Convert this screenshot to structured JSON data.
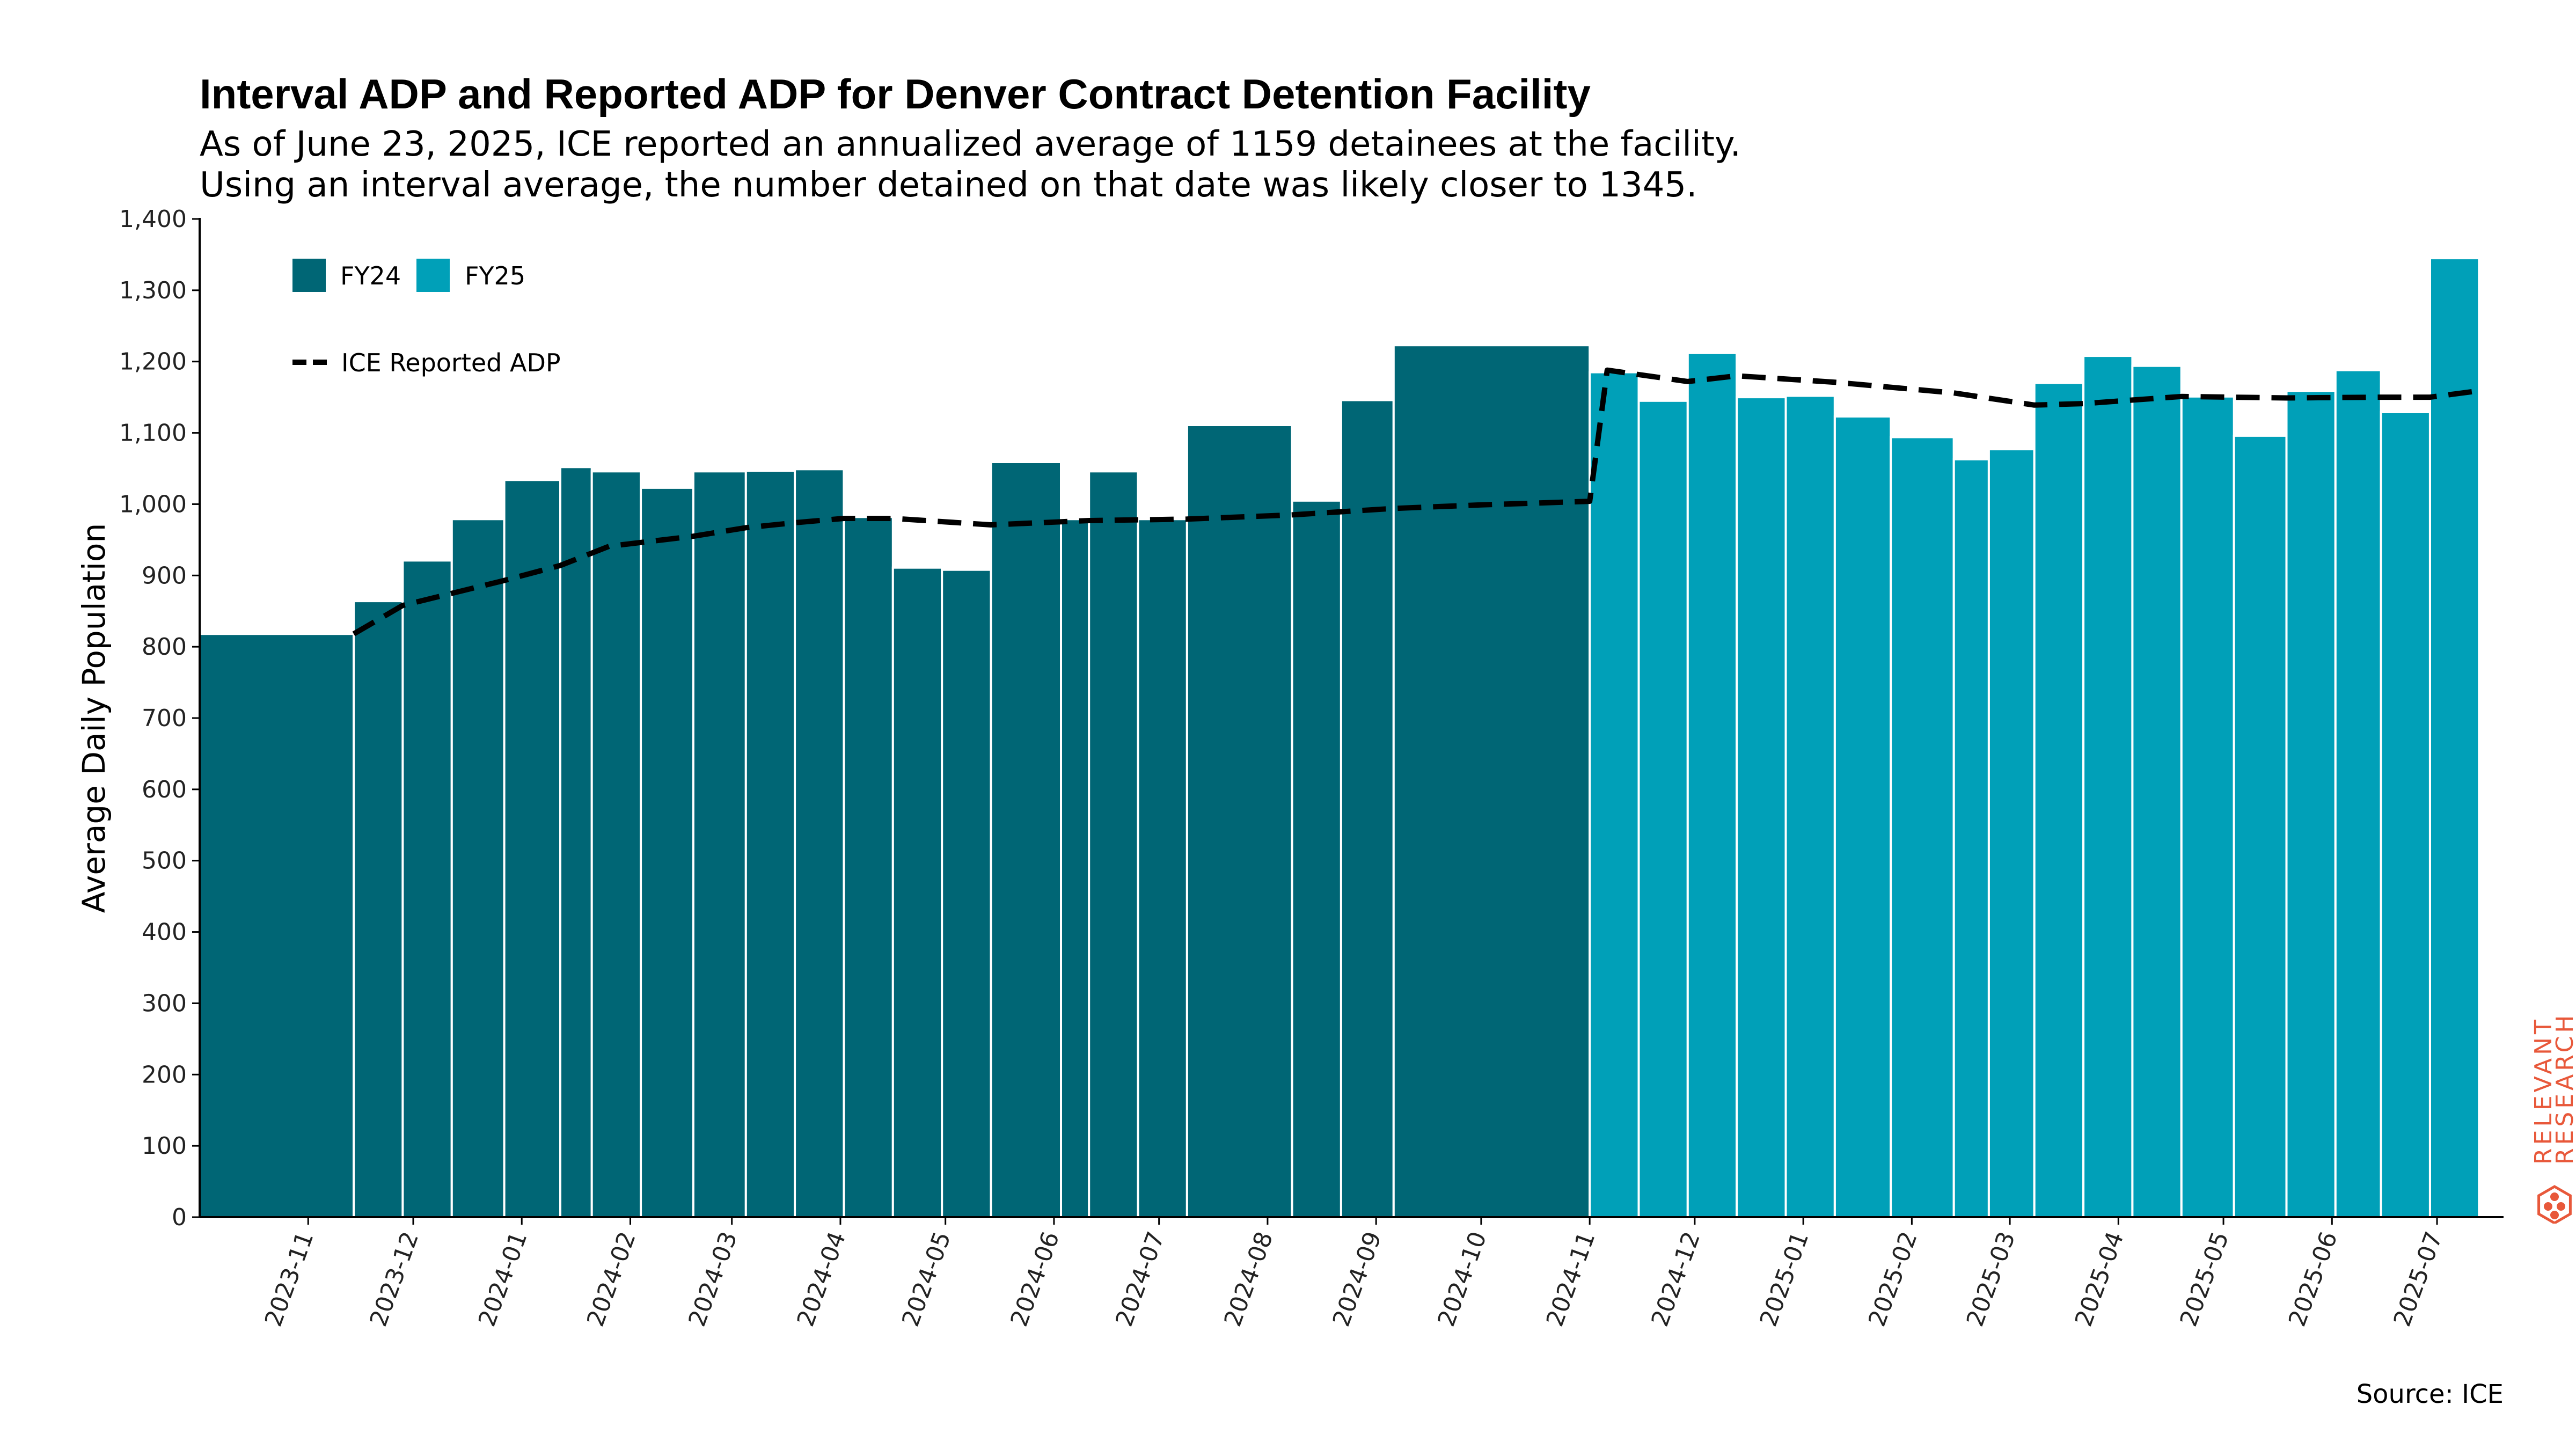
{
  "chart_data": {
    "type": "bar",
    "title": "Interval ADP and Reported ADP for Denver Contract Detention Facility",
    "subtitle": [
      "As of June 23, 2025, ICE reported an annualized average of 1159 detainees at the facility.",
      "Using an interval average, the number detained on that date was likely closer to 1345."
    ],
    "ylabel": "Average Daily Population",
    "xlabel": "",
    "ylim": [
      0,
      1400
    ],
    "yticks": [
      0,
      100,
      200,
      300,
      400,
      500,
      600,
      700,
      800,
      900,
      1000,
      1100,
      1200,
      1300,
      1400
    ],
    "ytick_labels": [
      "0",
      "100",
      "200",
      "300",
      "400",
      "500",
      "600",
      "700",
      "800",
      "900",
      "1,000",
      "1,100",
      "1,200",
      "1,300",
      "1,400"
    ],
    "xlim": [
      "2023-10-01",
      "2025-07-20"
    ],
    "xticks": [
      "2023-11-01",
      "2023-12-01",
      "2024-01-01",
      "2024-02-01",
      "2024-03-01",
      "2024-04-01",
      "2024-05-01",
      "2024-06-01",
      "2024-07-01",
      "2024-08-01",
      "2024-09-01",
      "2024-10-01",
      "2024-11-01",
      "2024-12-01",
      "2025-01-01",
      "2025-02-01",
      "2025-03-01",
      "2025-04-01",
      "2025-05-01",
      "2025-06-01",
      "2025-07-01"
    ],
    "xtick_labels": [
      "2023-11",
      "2023-12",
      "2024-01",
      "2024-02",
      "2024-03",
      "2024-04",
      "2024-05",
      "2024-06",
      "2024-07",
      "2024-08",
      "2024-09",
      "2024-10",
      "2024-11",
      "2024-12",
      "2025-01",
      "2025-02",
      "2025-03",
      "2025-04",
      "2025-05",
      "2025-06",
      "2025-07"
    ],
    "legend": {
      "placement": "top-left",
      "bar_entries": [
        "FY24",
        "FY25"
      ],
      "line_entry": "ICE Reported ADP"
    },
    "grid": false,
    "colors": {
      "FY24": "#006675",
      "FY25": "#00A0B8",
      "line": "#000000"
    },
    "bars": [
      {
        "start": "2023-10-01",
        "end": "2023-11-14",
        "value": 818,
        "series": "FY24"
      },
      {
        "start": "2023-11-14",
        "end": "2023-11-28",
        "value": 864,
        "series": "FY24"
      },
      {
        "start": "2023-11-28",
        "end": "2023-12-12",
        "value": 921,
        "series": "FY24"
      },
      {
        "start": "2023-12-12",
        "end": "2023-12-27",
        "value": 979,
        "series": "FY24"
      },
      {
        "start": "2023-12-27",
        "end": "2024-01-12",
        "value": 1034,
        "series": "FY24"
      },
      {
        "start": "2024-01-12",
        "end": "2024-01-21",
        "value": 1052,
        "series": "FY24"
      },
      {
        "start": "2024-01-21",
        "end": "2024-02-04",
        "value": 1046,
        "series": "FY24"
      },
      {
        "start": "2024-02-04",
        "end": "2024-02-19",
        "value": 1023,
        "series": "FY24"
      },
      {
        "start": "2024-02-19",
        "end": "2024-03-05",
        "value": 1046,
        "series": "FY24"
      },
      {
        "start": "2024-03-05",
        "end": "2024-03-19",
        "value": 1047,
        "series": "FY24"
      },
      {
        "start": "2024-03-19",
        "end": "2024-04-02",
        "value": 1049,
        "series": "FY24"
      },
      {
        "start": "2024-04-02",
        "end": "2024-04-16",
        "value": 982,
        "series": "FY24"
      },
      {
        "start": "2024-04-16",
        "end": "2024-04-30",
        "value": 911,
        "series": "FY24"
      },
      {
        "start": "2024-04-30",
        "end": "2024-05-14",
        "value": 908,
        "series": "FY24"
      },
      {
        "start": "2024-05-14",
        "end": "2024-06-03",
        "value": 1059,
        "series": "FY24"
      },
      {
        "start": "2024-06-03",
        "end": "2024-06-11",
        "value": 979,
        "series": "FY24"
      },
      {
        "start": "2024-06-11",
        "end": "2024-06-25",
        "value": 1046,
        "series": "FY24"
      },
      {
        "start": "2024-06-25",
        "end": "2024-07-09",
        "value": 979,
        "series": "FY24"
      },
      {
        "start": "2024-07-09",
        "end": "2024-08-08",
        "value": 1111,
        "series": "FY24"
      },
      {
        "start": "2024-08-08",
        "end": "2024-08-22",
        "value": 1005,
        "series": "FY24"
      },
      {
        "start": "2024-08-22",
        "end": "2024-09-06",
        "value": 1146,
        "series": "FY24"
      },
      {
        "start": "2024-09-06",
        "end": "2024-11-01",
        "value": 1223,
        "series": "FY24"
      },
      {
        "start": "2024-11-01",
        "end": "2024-11-15",
        "value": 1185,
        "series": "FY25"
      },
      {
        "start": "2024-11-15",
        "end": "2024-11-29",
        "value": 1145,
        "series": "FY25"
      },
      {
        "start": "2024-11-29",
        "end": "2024-12-13",
        "value": 1212,
        "series": "FY25"
      },
      {
        "start": "2024-12-13",
        "end": "2024-12-27",
        "value": 1150,
        "series": "FY25"
      },
      {
        "start": "2024-12-27",
        "end": "2025-01-10",
        "value": 1152,
        "series": "FY25"
      },
      {
        "start": "2025-01-10",
        "end": "2025-01-26",
        "value": 1123,
        "series": "FY25"
      },
      {
        "start": "2025-01-26",
        "end": "2025-02-13",
        "value": 1094,
        "series": "FY25"
      },
      {
        "start": "2025-02-13",
        "end": "2025-02-23",
        "value": 1063,
        "series": "FY25"
      },
      {
        "start": "2025-02-23",
        "end": "2025-03-08",
        "value": 1077,
        "series": "FY25"
      },
      {
        "start": "2025-03-08",
        "end": "2025-03-22",
        "value": 1170,
        "series": "FY25"
      },
      {
        "start": "2025-03-22",
        "end": "2025-04-05",
        "value": 1208,
        "series": "FY25"
      },
      {
        "start": "2025-04-05",
        "end": "2025-04-19",
        "value": 1194,
        "series": "FY25"
      },
      {
        "start": "2025-04-19",
        "end": "2025-05-04",
        "value": 1151,
        "series": "FY25"
      },
      {
        "start": "2025-05-04",
        "end": "2025-05-19",
        "value": 1096,
        "series": "FY25"
      },
      {
        "start": "2025-05-19",
        "end": "2025-06-02",
        "value": 1159,
        "series": "FY25"
      },
      {
        "start": "2025-06-02",
        "end": "2025-06-15",
        "value": 1188,
        "series": "FY25"
      },
      {
        "start": "2025-06-15",
        "end": "2025-06-29",
        "value": 1129,
        "series": "FY25"
      },
      {
        "start": "2025-06-29",
        "end": "2025-07-13",
        "value": 1345,
        "series": "FY25"
      }
    ],
    "line": {
      "name": "ICE Reported ADP",
      "points": [
        {
          "x": "2023-11-14",
          "y": 818
        },
        {
          "x": "2023-11-28",
          "y": 858
        },
        {
          "x": "2023-12-27",
          "y": 893
        },
        {
          "x": "2024-01-12",
          "y": 914
        },
        {
          "x": "2024-01-26",
          "y": 941
        },
        {
          "x": "2024-02-19",
          "y": 955
        },
        {
          "x": "2024-03-05",
          "y": 967
        },
        {
          "x": "2024-03-19",
          "y": 974
        },
        {
          "x": "2024-04-02",
          "y": 980
        },
        {
          "x": "2024-04-16",
          "y": 980
        },
        {
          "x": "2024-05-14",
          "y": 971
        },
        {
          "x": "2024-06-11",
          "y": 977
        },
        {
          "x": "2024-07-09",
          "y": 979
        },
        {
          "x": "2024-08-08",
          "y": 985
        },
        {
          "x": "2024-09-06",
          "y": 994
        },
        {
          "x": "2024-10-01",
          "y": 999
        },
        {
          "x": "2024-11-01",
          "y": 1004
        },
        {
          "x": "2024-11-06",
          "y": 1188
        },
        {
          "x": "2024-11-29",
          "y": 1172
        },
        {
          "x": "2024-12-13",
          "y": 1180
        },
        {
          "x": "2025-01-10",
          "y": 1171
        },
        {
          "x": "2025-02-13",
          "y": 1156
        },
        {
          "x": "2025-03-08",
          "y": 1139
        },
        {
          "x": "2025-03-22",
          "y": 1141
        },
        {
          "x": "2025-04-19",
          "y": 1151
        },
        {
          "x": "2025-05-19",
          "y": 1149
        },
        {
          "x": "2025-06-15",
          "y": 1150
        },
        {
          "x": "2025-06-29",
          "y": 1150
        },
        {
          "x": "2025-07-13",
          "y": 1159
        }
      ]
    }
  },
  "source_note": "Source: ICE",
  "brand": {
    "line1": "RELEVANT",
    "line2": "RESEARCH",
    "color": "#E8583A"
  }
}
